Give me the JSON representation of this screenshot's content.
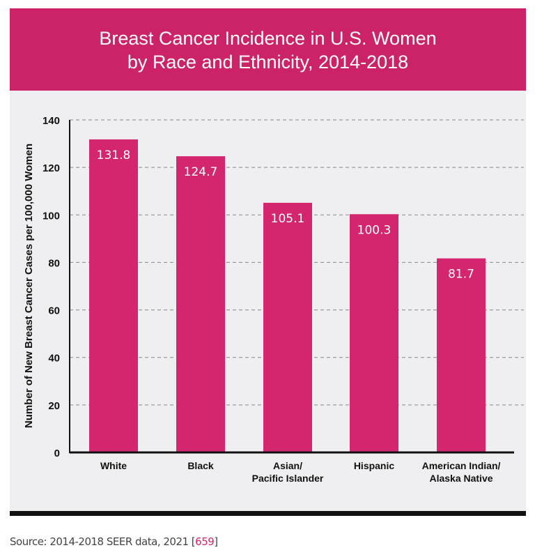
{
  "chart_data": {
    "type": "bar",
    "title": "Breast Cancer Incidence in U.S. Women\nby Race and Ethnicity, 2014-2018",
    "title_lines": [
      "Breast Cancer Incidence in U.S. Women",
      "by Race and Ethnicity, 2014-2018"
    ],
    "categories": [
      [
        "White"
      ],
      [
        "Black"
      ],
      [
        "Asian/",
        "Pacific Islander"
      ],
      [
        "Hispanic"
      ],
      [
        "American Indian/",
        "Alaska Native"
      ]
    ],
    "values": [
      131.8,
      124.7,
      105.1,
      100.3,
      81.7
    ],
    "data_labels": [
      "131.8",
      "124.7",
      "105.1",
      "100.3",
      "81.7"
    ],
    "xlabel": "",
    "ylabel": "Number of New Breast Cancer Cases per 100,000 Women",
    "ylim": [
      0,
      140
    ],
    "yticks": [
      0,
      20,
      40,
      60,
      80,
      100,
      120,
      140
    ],
    "grid": "horizontal dashed",
    "colors": {
      "bar": "#d3266f",
      "header": "#cc2368",
      "background": "#efeef0"
    }
  },
  "source": {
    "text": "Source: 2014-2018 SEER data, 2021 [",
    "ref": "659",
    "close": "]"
  }
}
